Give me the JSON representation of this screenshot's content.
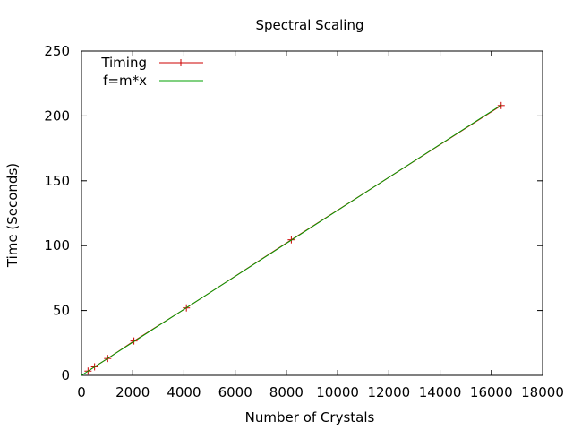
{
  "chart_data": {
    "type": "line",
    "title": "Spectral Scaling",
    "xlabel": "Number of Crystals",
    "ylabel": "Time (Seconds)",
    "xlim": [
      0,
      18000
    ],
    "ylim": [
      0,
      250
    ],
    "xticks": [
      0,
      2000,
      4000,
      6000,
      8000,
      10000,
      12000,
      14000,
      16000,
      18000
    ],
    "yticks": [
      0,
      50,
      100,
      150,
      200,
      250
    ],
    "grid": false,
    "legend_position": "top-left",
    "series": [
      {
        "name": "Timing",
        "color": "#cc0000",
        "style": "line-with-plus-markers",
        "x": [
          256,
          512,
          1024,
          2048,
          4096,
          8192,
          16384
        ],
        "y": [
          3.3,
          6.6,
          13,
          26.5,
          52,
          104.5,
          208
        ]
      },
      {
        "name": "f=m*x",
        "color": "#00a000",
        "style": "line",
        "m": 0.01272,
        "x": [
          0,
          16384
        ],
        "y": [
          0,
          208.4
        ]
      }
    ]
  }
}
